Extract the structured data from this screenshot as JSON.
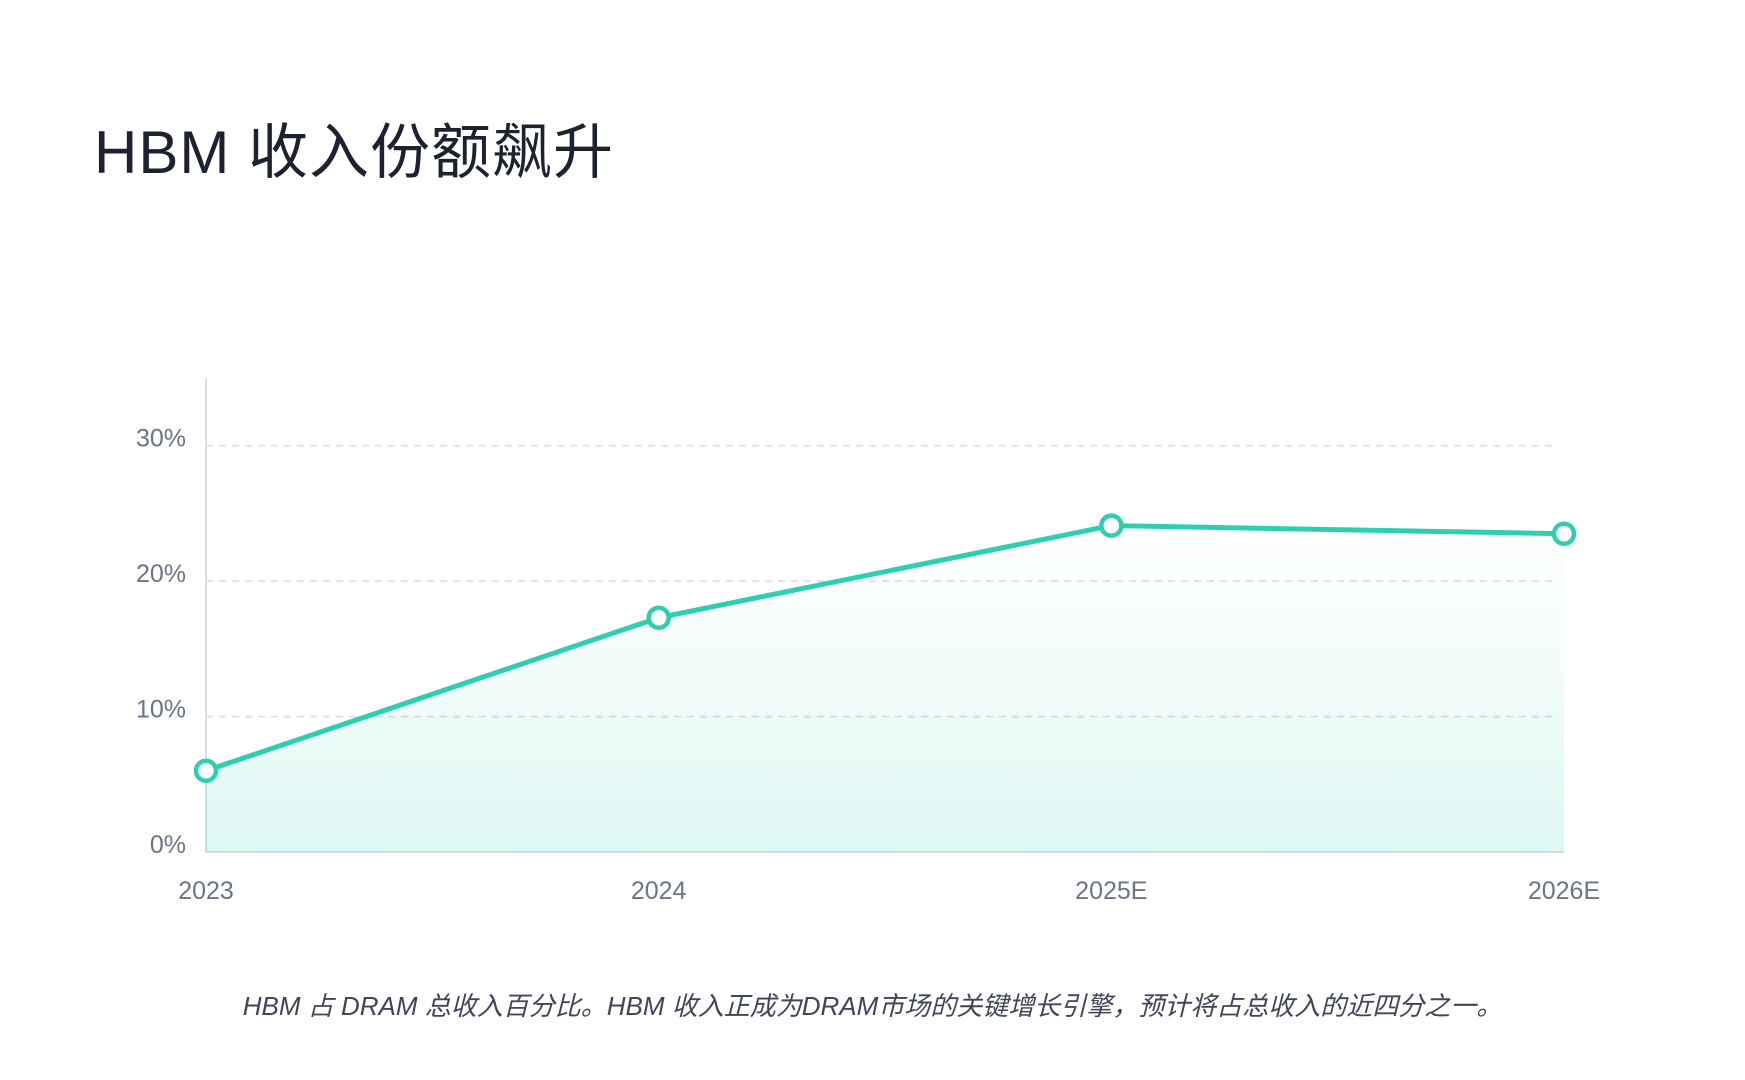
{
  "title": "HBM 收入份额飙升",
  "caption": "HBM 占 DRAM 总收入百分比。HBM 收入正成为DRAM市场的关键增长引擎，预计将占总收入的近四分之一。",
  "colors": {
    "line": "#2ecfb0",
    "area": "#2ecfb0",
    "grid": "#dfe3ea",
    "axis": "#d6def0",
    "tick_text": "#6b7588",
    "title": "#1c2230"
  },
  "chart_data": {
    "type": "area",
    "categories": [
      "2023",
      "2024",
      "2025E",
      "2026E"
    ],
    "series": [
      {
        "values": [
          6,
          17.3,
          24.1,
          23.5
        ]
      }
    ],
    "y_ticks": [
      "0%",
      "10%",
      "20%",
      "30%"
    ],
    "y_tick_values": [
      0,
      10,
      20,
      30
    ],
    "ylim": [
      0,
      30
    ],
    "grid": true,
    "grid_style": "dashed",
    "markers": "hollow-circle",
    "legend": "none"
  }
}
